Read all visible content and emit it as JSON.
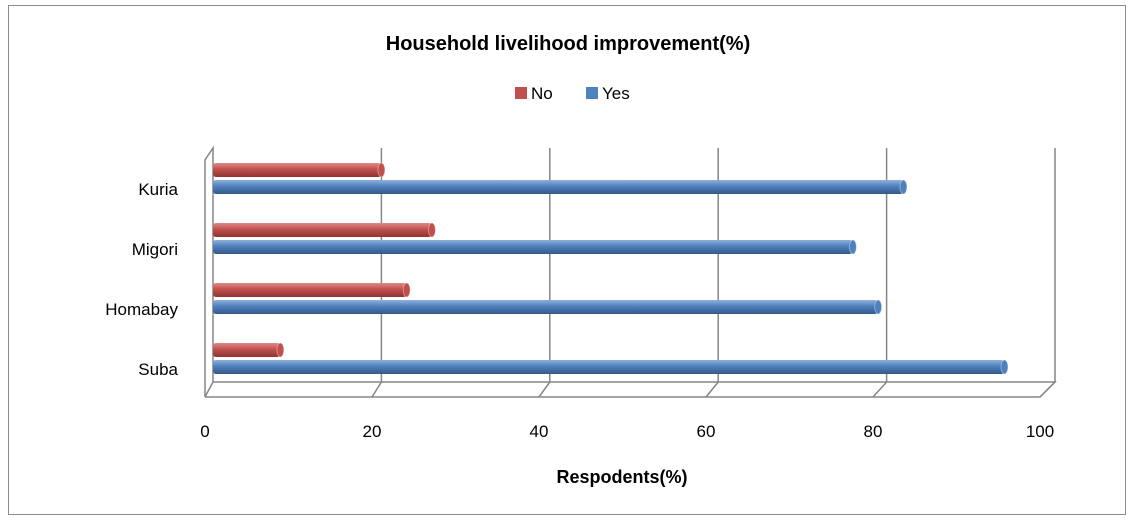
{
  "chart_data": {
    "type": "bar",
    "orientation": "horizontal",
    "title": "Household livelihood improvement(%)",
    "xlabel": "Respodents(%)",
    "ylabel": "",
    "categories": [
      "Kuria",
      "Migori",
      "Homabay",
      "Suba"
    ],
    "xlim": [
      0,
      100
    ],
    "xticks": [
      "0",
      "20",
      "40",
      "60",
      "80",
      "100"
    ],
    "grid": true,
    "legend_position": "top",
    "series": [
      {
        "name": "No",
        "color": "#c0504d",
        "values": [
          20,
          26,
          23,
          8
        ]
      },
      {
        "name": "Yes",
        "color": "#4f81bd",
        "values": [
          82,
          76,
          79,
          94
        ]
      }
    ]
  }
}
